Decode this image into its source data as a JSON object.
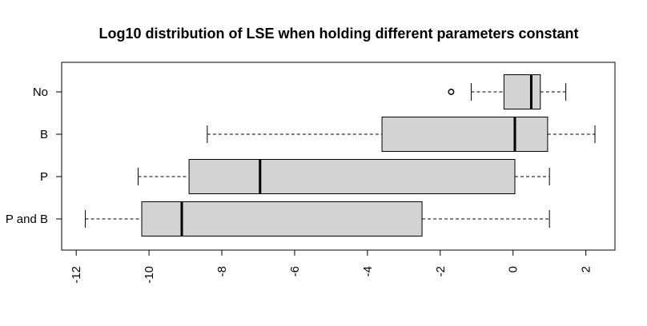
{
  "chart_data": {
    "type": "boxplot",
    "orientation": "horizontal",
    "title": "Log10 distribution of LSE when holding different parameters constant",
    "xlabel": "",
    "ylabel": "",
    "xlim": [
      -12.4,
      2.8
    ],
    "xticks": [
      -12,
      -10,
      -8,
      -6,
      -4,
      -2,
      0,
      2
    ],
    "xtick_labels": [
      "-12",
      "-10",
      "-8",
      "-6",
      "-4",
      "-2",
      "0",
      "2"
    ],
    "box_fill": "#d3d3d3",
    "groups": [
      {
        "name": "No",
        "whisker_low": -1.15,
        "q1": -0.25,
        "median": 0.5,
        "q3": 0.75,
        "whisker_high": 1.45,
        "outliers": [
          -1.7
        ]
      },
      {
        "name": "B",
        "whisker_low": -8.4,
        "q1": -3.6,
        "median": 0.05,
        "q3": 0.95,
        "whisker_high": 2.25,
        "outliers": []
      },
      {
        "name": "P",
        "whisker_low": -10.3,
        "q1": -8.9,
        "median": -6.95,
        "q3": 0.05,
        "whisker_high": 1.0,
        "outliers": []
      },
      {
        "name": "P and B",
        "whisker_low": -11.75,
        "q1": -10.2,
        "median": -9.1,
        "q3": -2.5,
        "whisker_high": 1.0,
        "outliers": []
      }
    ]
  }
}
